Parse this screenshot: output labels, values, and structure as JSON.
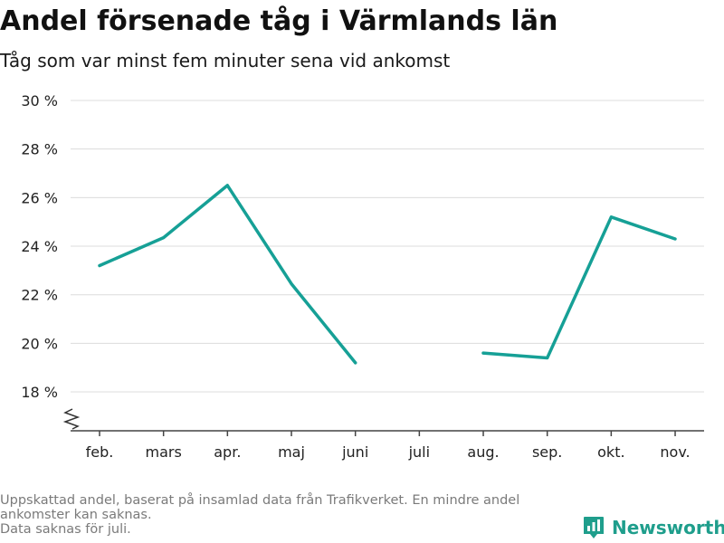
{
  "title": "Andel försenade tåg i Värmlands län",
  "subtitle": "Tåg som var minst fem minuter sena vid ankomst",
  "footnote": {
    "line1": "Uppskattad andel, baserat på insamlad data från Trafikverket. En mindre andel",
    "line2": "ankomster kan saknas.",
    "line3": "Data saknas för juli."
  },
  "brand": {
    "name": "Newsworthy",
    "icon": "newsworthy-logo-icon",
    "color": "#1f9e8c"
  },
  "chart_data": {
    "type": "line",
    "categories": [
      "feb.",
      "mars",
      "apr.",
      "maj",
      "juni",
      "juli",
      "aug.",
      "sep.",
      "okt.",
      "nov."
    ],
    "series": [
      {
        "values": [
          23.2,
          24.35,
          26.5,
          22.45,
          19.2,
          null,
          19.6,
          19.4,
          25.2,
          24.3
        ],
        "color": "#16a096"
      }
    ],
    "yticks": [
      18,
      20,
      22,
      24,
      26,
      28,
      30
    ],
    "ytick_labels": [
      "18 %",
      "20 %",
      "22 %",
      "24 %",
      "26 %",
      "28 %",
      "30 %"
    ],
    "ylim": [
      16.4,
      30
    ],
    "y_axis_break": true,
    "grid": true,
    "xlabel": "",
    "ylabel": ""
  }
}
